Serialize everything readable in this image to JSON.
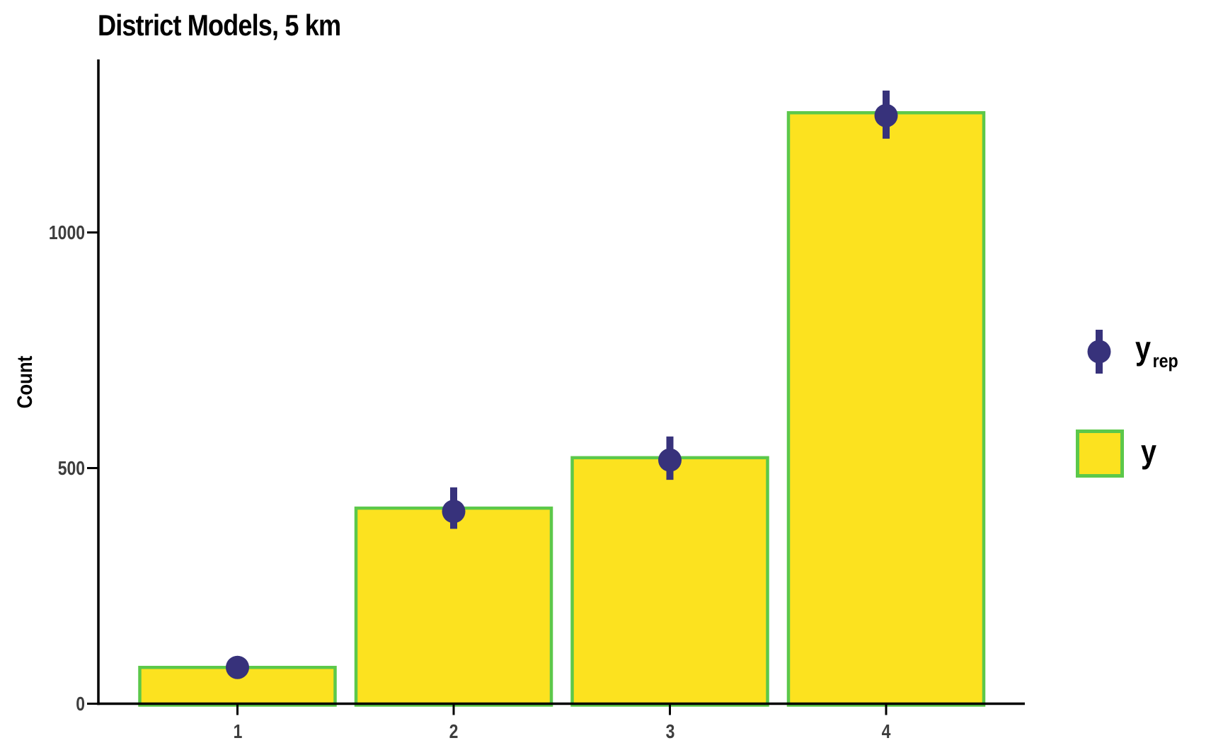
{
  "chart_data": {
    "type": "bar",
    "title": "District Models, 5 km",
    "xlabel": "",
    "ylabel": "Count",
    "categories": [
      "1",
      "2",
      "3",
      "4"
    ],
    "y_ticks": [
      0,
      500,
      1000
    ],
    "ylim": [
      0,
      1370
    ],
    "grid": false,
    "legend_position": "right",
    "series": [
      {
        "name": "y",
        "type": "bar",
        "values": [
          77,
          415,
          522,
          1254
        ],
        "fill_color": "#FCE21F",
        "border_color": "#5CC84A"
      },
      {
        "name": "y_rep",
        "type": "pointrange",
        "values": [
          77,
          408,
          517,
          1248
        ],
        "interval_low": [
          60,
          371,
          475,
          1199
        ],
        "interval_high": [
          95,
          459,
          567,
          1301
        ],
        "color": "#37327B"
      }
    ],
    "legend": {
      "items": [
        {
          "label_main": "y",
          "label_sub": "rep",
          "glyph": "pointrange"
        },
        {
          "label_main": "y",
          "label_sub": "",
          "glyph": "filled-square"
        }
      ]
    },
    "axis_color": "#000000",
    "tick_label_color": "#3d3d3d"
  }
}
